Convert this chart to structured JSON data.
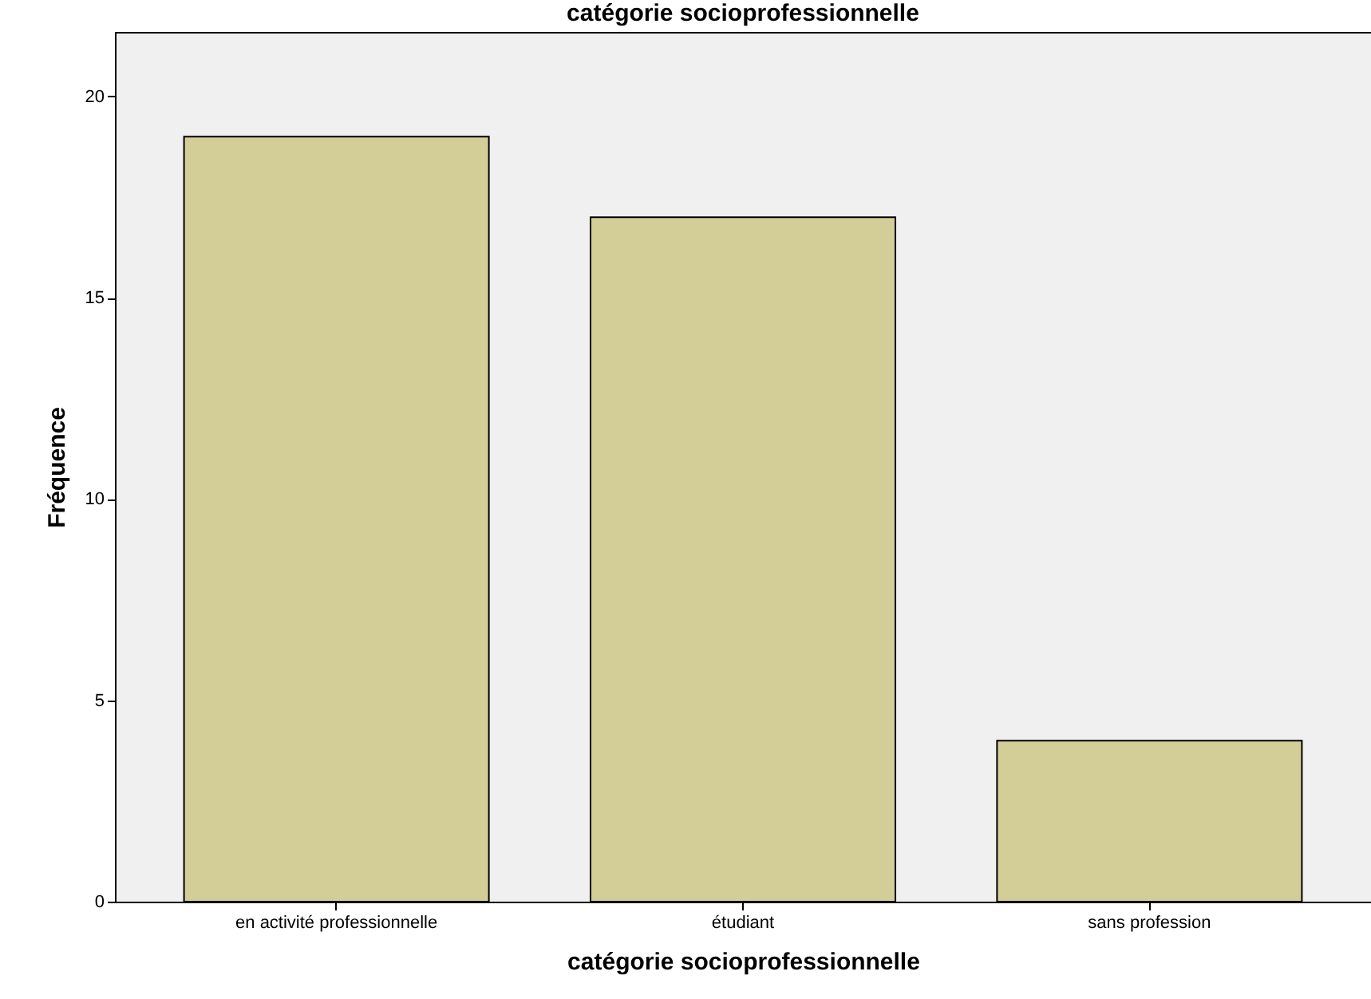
{
  "chart_data": {
    "type": "bar",
    "title": "catégorie socioprofessionnelle",
    "xlabel": "catégorie socioprofessionnelle",
    "ylabel": "Fréquence",
    "categories": [
      "en activité professionnelle",
      "étudiant",
      "sans profession"
    ],
    "values": [
      19,
      17,
      4
    ],
    "color": "#d3ce97",
    "ylim": [
      0,
      21.6
    ],
    "yticks": [
      0,
      5,
      10,
      15,
      20
    ],
    "grid": false
  }
}
